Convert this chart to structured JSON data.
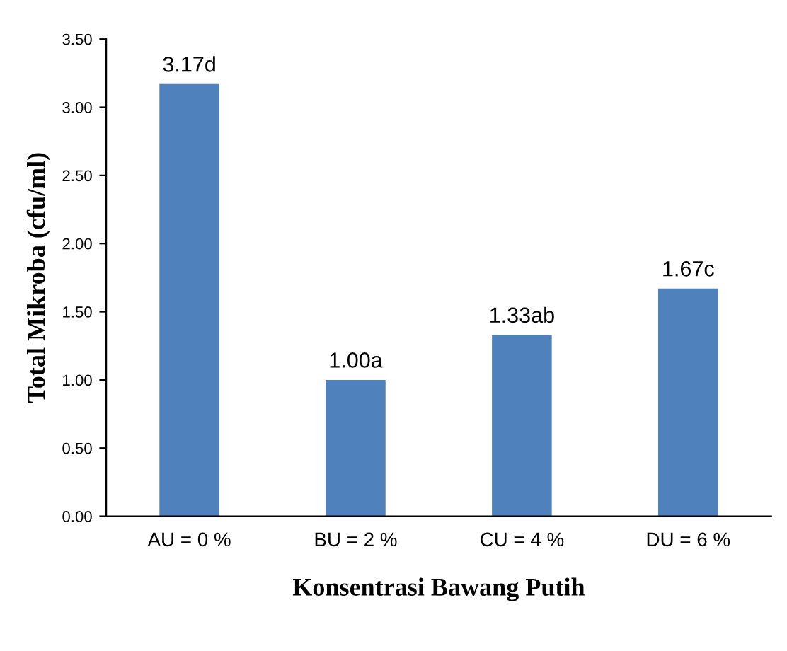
{
  "chart_data": {
    "type": "bar",
    "xlabel": "Konsentrasi Bawang Putih",
    "ylabel": "Total Mikroba (cfu/ml)",
    "categories": [
      "AU = 0 %",
      "BU = 2 %",
      "CU = 4 %",
      "DU = 6 %"
    ],
    "values": [
      3.17,
      1.0,
      1.33,
      1.67
    ],
    "value_labels": [
      "3.17d",
      "1.00a",
      "1.33ab",
      "1.67c"
    ],
    "color": "#4f81bd",
    "ylim": [
      0,
      3.5
    ],
    "yticks": [
      {
        "value": 0,
        "label": "0.00"
      },
      {
        "value": 0.5,
        "label": "0.50"
      },
      {
        "value": 1,
        "label": "1.00"
      },
      {
        "value": 1.5,
        "label": "1.50"
      },
      {
        "value": 2,
        "label": "2.00"
      },
      {
        "value": 2.5,
        "label": "2.50"
      },
      {
        "value": 3,
        "label": "3.00"
      },
      {
        "value": 3.5,
        "label": "3.50"
      }
    ],
    "grid": false,
    "legend": false
  }
}
